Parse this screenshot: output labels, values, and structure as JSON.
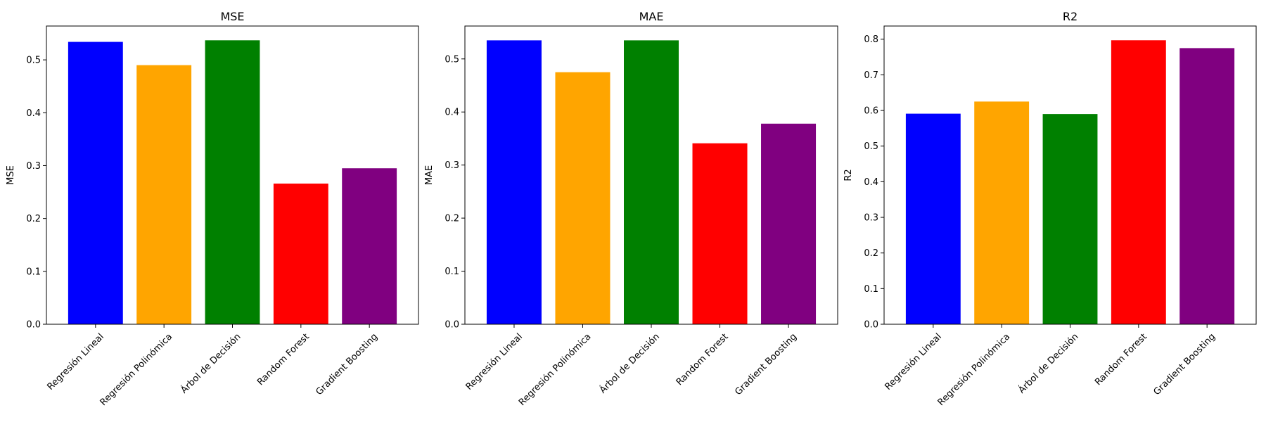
{
  "chart_data": [
    {
      "type": "bar",
      "title": "MSE",
      "ylabel": "MSE",
      "xlabel": "",
      "categories": [
        "Regresión Lineal",
        "Regresión Polinómica",
        "Árbol de Decisión",
        "Random Forest",
        "Gradient Boosting"
      ],
      "values": [
        0.534,
        0.49,
        0.537,
        0.266,
        0.295
      ],
      "colors": [
        "#0000ff",
        "#ffa500",
        "#008000",
        "#ff0000",
        "#800080"
      ],
      "yticks": [
        0.0,
        0.1,
        0.2,
        0.3,
        0.4,
        0.5
      ],
      "ylim": [
        0,
        0.564
      ],
      "grid": false
    },
    {
      "type": "bar",
      "title": "MAE",
      "ylabel": "MAE",
      "xlabel": "",
      "categories": [
        "Regresión Lineal",
        "Regresión Polinómica",
        "Árbol de Decisión",
        "Random Forest",
        "Gradient Boosting"
      ],
      "values": [
        0.535,
        0.475,
        0.535,
        0.341,
        0.378
      ],
      "colors": [
        "#0000ff",
        "#ffa500",
        "#008000",
        "#ff0000",
        "#800080"
      ],
      "yticks": [
        0.0,
        0.1,
        0.2,
        0.3,
        0.4,
        0.5
      ],
      "ylim": [
        0,
        0.562
      ],
      "grid": false
    },
    {
      "type": "bar",
      "title": "R2",
      "ylabel": "R2",
      "xlabel": "",
      "categories": [
        "Regresión Lineal",
        "Regresión Polinómica",
        "Árbol de Decisión",
        "Random Forest",
        "Gradient Boosting"
      ],
      "values": [
        0.591,
        0.625,
        0.59,
        0.797,
        0.775
      ],
      "colors": [
        "#0000ff",
        "#ffa500",
        "#008000",
        "#ff0000",
        "#800080"
      ],
      "yticks": [
        0.0,
        0.1,
        0.2,
        0.3,
        0.4,
        0.5,
        0.6,
        0.7,
        0.8
      ],
      "ylim": [
        0,
        0.837
      ],
      "grid": false
    }
  ]
}
